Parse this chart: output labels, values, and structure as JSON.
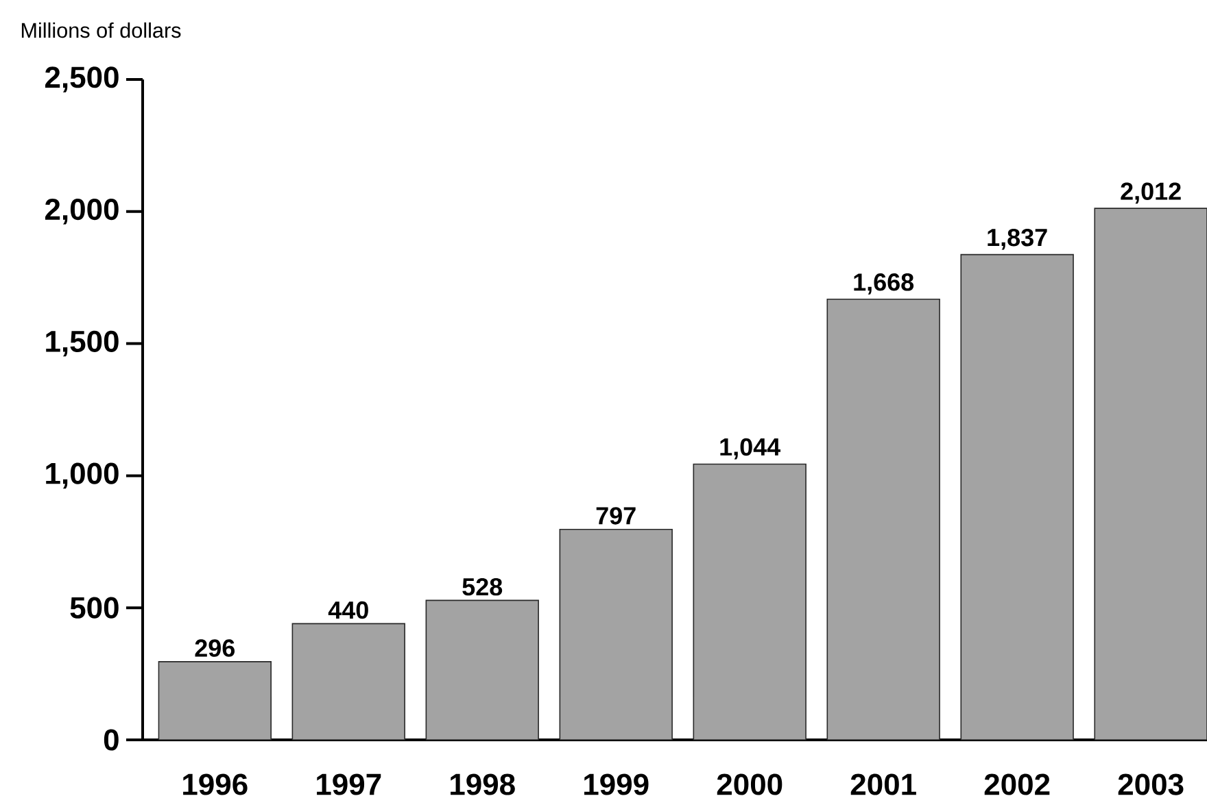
{
  "chart_data": {
    "type": "bar",
    "ylabel": "Millions of dollars",
    "categories": [
      "1996",
      "1997",
      "1998",
      "1999",
      "2000",
      "2001",
      "2002",
      "2003"
    ],
    "values": [
      296,
      440,
      528,
      797,
      1044,
      1668,
      1837,
      2012
    ],
    "value_labels": [
      "296",
      "440",
      "528",
      "797",
      "1,044",
      "1,668",
      "1,837",
      "2,012"
    ],
    "color": "#a3a3a3",
    "ylim": [
      0,
      2500
    ],
    "yticks": [
      {
        "value": 0,
        "label": "0"
      },
      {
        "value": 500,
        "label": "500"
      },
      {
        "value": 1000,
        "label": "1,000"
      },
      {
        "value": 1500,
        "label": "1,500"
      },
      {
        "value": 2000,
        "label": "2,000"
      },
      {
        "value": 2500,
        "label": "2,500"
      }
    ],
    "grid": false
  }
}
